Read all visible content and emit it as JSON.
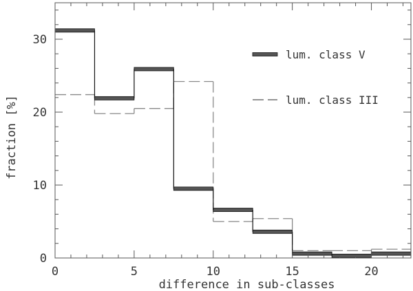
{
  "chart_data": {
    "type": "step",
    "xlabel": "difference in sub-classes",
    "ylabel": "fraction [%]",
    "xlim": [
      0,
      22.5
    ],
    "ylim": [
      0,
      35
    ],
    "x_ticks": [
      0,
      5,
      10,
      15,
      20
    ],
    "y_ticks": [
      0,
      10,
      20,
      30
    ],
    "x_tick_labels": [
      "0",
      "5",
      "10",
      "15",
      "20"
    ],
    "y_tick_labels": [
      "0",
      "10",
      "20",
      "30"
    ],
    "bin_edges": [
      0,
      2.5,
      5,
      7.5,
      10,
      12.5,
      15,
      17.5,
      20,
      22.5
    ],
    "grid": false,
    "legend_position": "top-right",
    "series": [
      {
        "name": "lum. class V",
        "style": "thick-solid",
        "color": "#222222",
        "values": [
          31.2,
          21.9,
          25.9,
          9.5,
          6.6,
          3.6,
          0.6,
          0.3,
          0.6
        ]
      },
      {
        "name": "lum. class III",
        "style": "dashed",
        "color": "#888888",
        "values": [
          22.4,
          19.8,
          20.5,
          24.2,
          5.0,
          5.4,
          1.0,
          1.0,
          1.2
        ]
      }
    ]
  }
}
